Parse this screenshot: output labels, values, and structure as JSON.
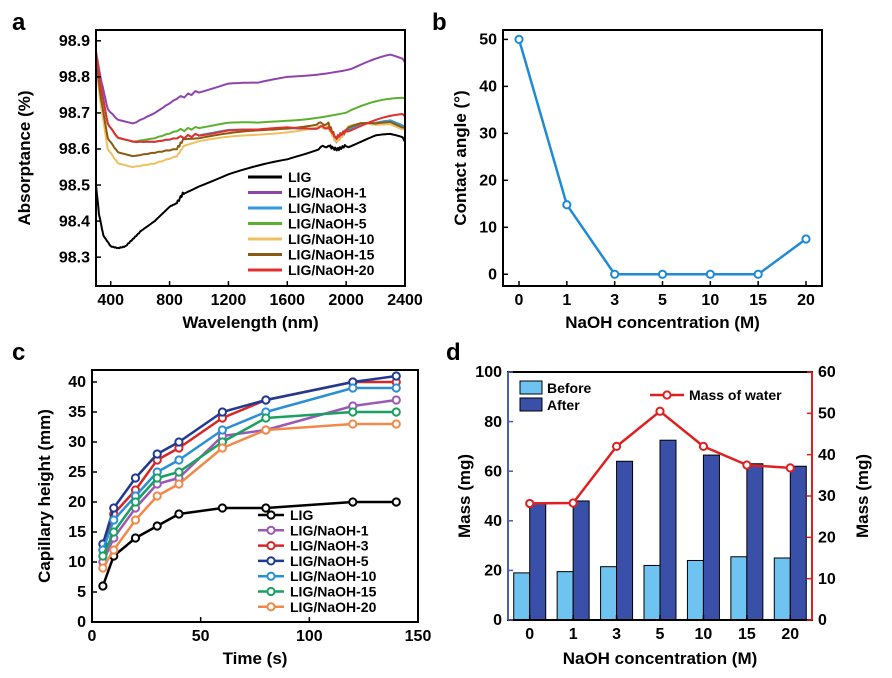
{
  "panels": {
    "a": "a",
    "b": "b",
    "c": "c",
    "d": "d"
  },
  "chart_data": [
    {
      "panel": "a",
      "type": "line",
      "xlabel": "Wavelength (nm)",
      "ylabel": "Absorptance (%)",
      "xlim": [
        300,
        2400
      ],
      "ylim": [
        98.22,
        98.93
      ],
      "xticks": [
        400,
        800,
        1200,
        1600,
        2000,
        2400
      ],
      "yticks": [
        98.3,
        98.4,
        98.5,
        98.6,
        98.7,
        98.8,
        98.9
      ],
      "legend_position": "bottom-right",
      "series": [
        {
          "name": "LIG",
          "color": "#000000",
          "x": [
            300,
            320,
            350,
            400,
            450,
            500,
            550,
            600,
            700,
            800,
            850,
            880,
            900,
            1000,
            1200,
            1400,
            1600,
            1800,
            1880,
            1920,
            1950,
            2000,
            2100,
            2200,
            2300,
            2400
          ],
          "y": [
            98.5,
            98.42,
            98.36,
            98.33,
            98.325,
            98.33,
            98.35,
            98.37,
            98.4,
            98.44,
            98.45,
            98.47,
            98.48,
            98.5,
            98.53,
            98.55,
            98.57,
            98.6,
            98.61,
            98.6,
            98.6,
            98.61,
            98.62,
            98.63,
            98.63,
            98.62
          ]
        },
        {
          "name": "LIG/NaOH-1",
          "color": "#8e44ad",
          "x": [
            300,
            330,
            380,
            450,
            550,
            700,
            850,
            1000,
            1200,
            1400,
            1600,
            1800,
            2000,
            2200,
            2300,
            2400
          ],
          "y": [
            98.87,
            98.8,
            98.71,
            98.68,
            98.67,
            98.7,
            98.74,
            98.76,
            98.78,
            98.78,
            98.8,
            98.81,
            98.82,
            98.84,
            98.85,
            98.84
          ]
        },
        {
          "name": "LIG/NaOH-3",
          "color": "#3498db",
          "x": [
            300,
            330,
            380,
            450,
            550,
            700,
            850,
            1000,
            1200,
            1400,
            1600,
            1800,
            1880,
            1930,
            1960,
            2000,
            2100,
            2200,
            2300,
            2400
          ],
          "y": [
            98.86,
            98.78,
            98.67,
            98.63,
            98.62,
            98.62,
            98.63,
            98.64,
            98.65,
            98.65,
            98.66,
            98.66,
            98.66,
            98.62,
            98.63,
            98.65,
            98.66,
            98.66,
            98.67,
            98.66
          ]
        },
        {
          "name": "LIG/NaOH-5",
          "color": "#5bb030",
          "x": [
            300,
            330,
            380,
            450,
            550,
            700,
            850,
            1000,
            1200,
            1400,
            1600,
            1800,
            2000,
            2200,
            2300,
            2400
          ],
          "y": [
            98.86,
            98.78,
            98.67,
            98.63,
            98.62,
            98.63,
            98.65,
            98.66,
            98.67,
            98.67,
            98.68,
            98.69,
            98.7,
            98.72,
            98.73,
            98.74
          ]
        },
        {
          "name": "LIG/NaOH-10",
          "color": "#f0c060",
          "x": [
            300,
            330,
            380,
            450,
            550,
            700,
            850,
            900,
            1000,
            1200,
            1400,
            1600,
            1800,
            1880,
            1930,
            1960,
            2000,
            2100,
            2200,
            2300,
            2400
          ],
          "y": [
            98.84,
            98.73,
            98.6,
            98.56,
            98.55,
            98.56,
            98.58,
            98.61,
            98.62,
            98.63,
            98.64,
            98.65,
            98.66,
            98.66,
            98.62,
            98.63,
            98.65,
            98.66,
            98.66,
            98.67,
            98.66
          ]
        },
        {
          "name": "LIG/NaOH-15",
          "color": "#8b5a10",
          "x": [
            300,
            330,
            380,
            450,
            550,
            700,
            850,
            900,
            1000,
            1200,
            1400,
            1600,
            1800,
            1880,
            1930,
            1960,
            2000,
            2100,
            2200,
            2300,
            2400
          ],
          "y": [
            98.85,
            98.75,
            98.63,
            98.59,
            98.58,
            98.59,
            98.6,
            98.63,
            98.63,
            98.64,
            98.65,
            98.66,
            98.67,
            98.67,
            98.63,
            98.64,
            98.65,
            98.66,
            98.66,
            98.67,
            98.66
          ]
        },
        {
          "name": "LIG/NaOH-20",
          "color": "#e03030",
          "x": [
            300,
            330,
            380,
            450,
            550,
            700,
            850,
            1000,
            1200,
            1400,
            1600,
            1800,
            1880,
            1930,
            1960,
            2000,
            2100,
            2200,
            2300,
            2400
          ],
          "y": [
            98.87,
            98.78,
            98.67,
            98.63,
            98.62,
            98.62,
            98.63,
            98.64,
            98.65,
            98.65,
            98.66,
            98.66,
            98.66,
            98.63,
            98.64,
            98.65,
            98.66,
            98.67,
            98.68,
            98.69
          ]
        }
      ]
    },
    {
      "panel": "b",
      "type": "line",
      "xlabel": "NaOH concentration (M)",
      "ylabel": "Contact angle (°)",
      "categories": [
        "0",
        "1",
        "3",
        "5",
        "10",
        "15",
        "20"
      ],
      "ylim": [
        -2.5,
        52
      ],
      "yticks": [
        0,
        10,
        20,
        30,
        40,
        50
      ],
      "series": [
        {
          "name": "",
          "color": "#1f8ad6",
          "values": [
            50,
            14.8,
            0,
            0,
            0,
            0,
            7.5
          ]
        }
      ]
    },
    {
      "panel": "c",
      "type": "line",
      "xlabel": "Time (s)",
      "ylabel": "Capillary height (mm)",
      "xlim": [
        0,
        150
      ],
      "ylim": [
        0,
        42
      ],
      "xticks": [
        0,
        50,
        100,
        150
      ],
      "yticks": [
        0,
        5,
        10,
        15,
        20,
        25,
        30,
        35,
        40
      ],
      "legend_position": "bottom-right",
      "series": [
        {
          "name": "LIG",
          "color": "#000000",
          "x": [
            5,
            10,
            20,
            30,
            40,
            60,
            80,
            120,
            140
          ],
          "y": [
            6,
            11,
            14,
            16,
            18,
            19,
            19,
            20,
            20
          ]
        },
        {
          "name": "LIG/NaOH-1",
          "color": "#9b59b6",
          "x": [
            5,
            10,
            20,
            30,
            40,
            60,
            80,
            120,
            140
          ],
          "y": [
            10,
            14,
            19,
            23,
            24,
            31,
            32,
            36,
            37
          ]
        },
        {
          "name": "LIG/NaOH-3",
          "color": "#d62728",
          "x": [
            5,
            10,
            20,
            30,
            40,
            60,
            80,
            120,
            140
          ],
          "y": [
            12,
            18,
            22,
            27,
            29,
            34,
            37,
            40,
            40
          ]
        },
        {
          "name": "LIG/NaOH-5",
          "color": "#1f3a93",
          "x": [
            5,
            10,
            20,
            30,
            40,
            60,
            80,
            120,
            140
          ],
          "y": [
            13,
            19,
            24,
            28,
            30,
            35,
            37,
            40,
            41
          ]
        },
        {
          "name": "LIG/NaOH-10",
          "color": "#2b8fd6",
          "x": [
            5,
            10,
            20,
            30,
            40,
            60,
            80,
            120,
            140
          ],
          "y": [
            12,
            17,
            21,
            25,
            27,
            32,
            35,
            39,
            39
          ]
        },
        {
          "name": "LIG/NaOH-15",
          "color": "#1aa060",
          "x": [
            5,
            10,
            20,
            30,
            40,
            60,
            80,
            120,
            140
          ],
          "y": [
            11,
            15,
            20,
            24,
            25,
            30,
            34,
            35,
            35
          ]
        },
        {
          "name": "LIG/NaOH-20",
          "color": "#f08a4b",
          "x": [
            5,
            10,
            20,
            30,
            40,
            60,
            80,
            120,
            140
          ],
          "y": [
            9,
            12,
            17,
            21,
            23,
            29,
            32,
            33,
            33
          ]
        }
      ]
    },
    {
      "panel": "d",
      "type": "bar",
      "xlabel": "NaOH concentration (M)",
      "ylabel": "Mass (mg)",
      "ylabel_right": "Mass (mg)",
      "categories": [
        "0",
        "1",
        "3",
        "5",
        "10",
        "15",
        "20"
      ],
      "ylim": [
        0,
        100
      ],
      "yticks": [
        0,
        20,
        40,
        60,
        80,
        100
      ],
      "ylim_right": [
        0,
        60
      ],
      "yticks_right": [
        0,
        10,
        20,
        30,
        40,
        50,
        60
      ],
      "left_axis_color": "#4a5fb0",
      "right_axis_color": "#e02020",
      "series": [
        {
          "name": "Before",
          "color": "#6ec3f0",
          "values": [
            19,
            19.5,
            21.5,
            22,
            24,
            25.5,
            25
          ]
        },
        {
          "name": "After",
          "color": "#3a4fa8",
          "values": [
            47,
            48,
            64,
            72.5,
            66.5,
            63,
            62
          ]
        },
        {
          "name": "Mass of water",
          "color": "#e02020",
          "axis": "right",
          "values": [
            28.2,
            28.3,
            42,
            50.5,
            42,
            37.5,
            36.8
          ]
        }
      ]
    }
  ]
}
